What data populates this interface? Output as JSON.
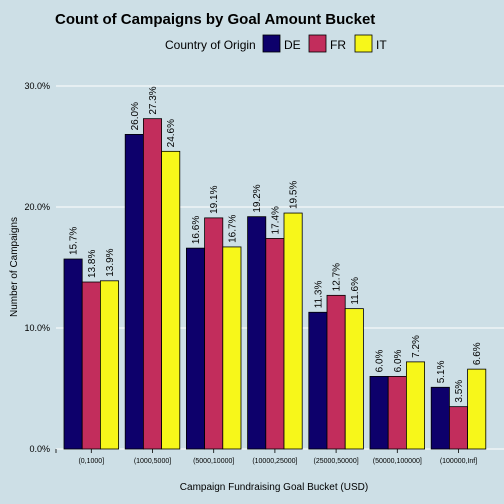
{
  "chart_data": {
    "type": "bar",
    "title": "Count of Campaigns by Goal Amount Bucket",
    "xlabel": "Campaign Fundraising Goal Bucket (USD)",
    "ylabel": "Number of Campaigns",
    "ylim": [
      0,
      0.3
    ],
    "y_ticks": [
      {
        "value": 0.0,
        "label": "0.0%"
      },
      {
        "value": 0.1,
        "label": "10.0%"
      },
      {
        "value": 0.2,
        "label": "20.0%"
      },
      {
        "value": 0.3,
        "label": "30.0%"
      }
    ],
    "grid": true,
    "legend_position": "top",
    "legend_title": "Country of Origin",
    "categories": [
      "(0,1000]",
      "(1000,5000]",
      "(5000,10000]",
      "(10000,25000]",
      "(25000,50000]",
      "(50000,100000]",
      "(100000,Inf]"
    ],
    "series": [
      {
        "name": "DE",
        "color": "#0d006b",
        "values": [
          0.157,
          0.26,
          0.166,
          0.192,
          0.113,
          0.06,
          0.051
        ],
        "labels": [
          "15.7%",
          "26.0%",
          "16.6%",
          "19.2%",
          "11.3%",
          "6.0%",
          "5.1%"
        ]
      },
      {
        "name": "FR",
        "color": "#c22d5c",
        "values": [
          0.138,
          0.273,
          0.191,
          0.174,
          0.127,
          0.06,
          0.035
        ],
        "labels": [
          "13.8%",
          "27.3%",
          "19.1%",
          "17.4%",
          "12.7%",
          "6.0%",
          "3.5%"
        ]
      },
      {
        "name": "IT",
        "color": "#f7f71a",
        "values": [
          0.139,
          0.246,
          0.167,
          0.195,
          0.116,
          0.072,
          0.066
        ],
        "labels": [
          "13.9%",
          "24.6%",
          "16.7%",
          "19.5%",
          "11.6%",
          "7.2%",
          "6.6%"
        ]
      }
    ]
  }
}
